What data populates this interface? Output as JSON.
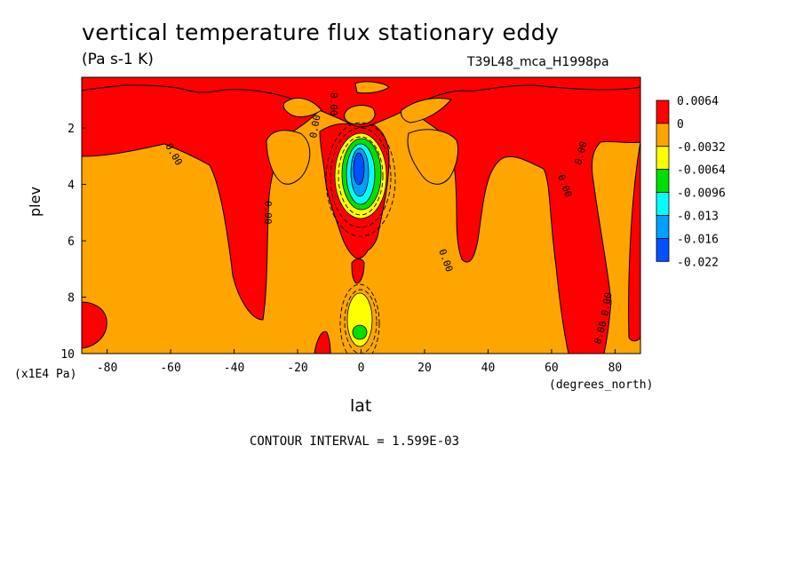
{
  "chart_data": {
    "type": "heatmap",
    "title": "vertical temperature flux stationary eddy",
    "subtitle": "(Pa s-1 K)",
    "dataset": "T39L48_mca_H1998pa",
    "xlabel": "lat",
    "x_unit": "(degrees_north)",
    "ylabel": "plev",
    "y_unit": "(x1E4 Pa)",
    "xlim": [
      -88,
      88
    ],
    "ylim": [
      10,
      0.2
    ],
    "x_ticks": [
      "-80",
      "-60",
      "-40",
      "-20",
      "0",
      "20",
      "40",
      "60",
      "80"
    ],
    "y_ticks": [
      "2",
      "4",
      "6",
      "8",
      "10"
    ],
    "colorbar": {
      "labels": [
        "0.0064",
        "0",
        "-0.0032",
        "-0.0064",
        "-0.0096",
        "-0.013",
        "-0.016",
        "-0.022"
      ],
      "colors": [
        "#ff0000",
        "#ffa500",
        "#ffff00",
        "#00e000",
        "#00ffff",
        "#00a0ff",
        "#0050ff"
      ]
    },
    "contour_labels": [
      "0.00",
      "0.00",
      "0.00",
      "0.00",
      "0.00",
      "0.00",
      "0.00",
      "0.00",
      "0.00"
    ],
    "contour_interval_text": "CONTOUR INTERVAL = 1.599E-03",
    "regions": [
      {
        "level": "positive",
        "color": "#ff0000"
      },
      {
        "level": "0 to -0.0032",
        "color": "#ffa500"
      },
      {
        "level": "-0.0032 to -0.0064",
        "color": "#ffff00"
      },
      {
        "level": "-0.0064 to -0.0096",
        "color": "#00e000"
      },
      {
        "level": "-0.0096 to -0.013",
        "color": "#00ffff"
      },
      {
        "level": "-0.013 to -0.016",
        "color": "#00a0ff"
      },
      {
        "level": "-0.016 to -0.022",
        "color": "#0050ff"
      }
    ]
  }
}
